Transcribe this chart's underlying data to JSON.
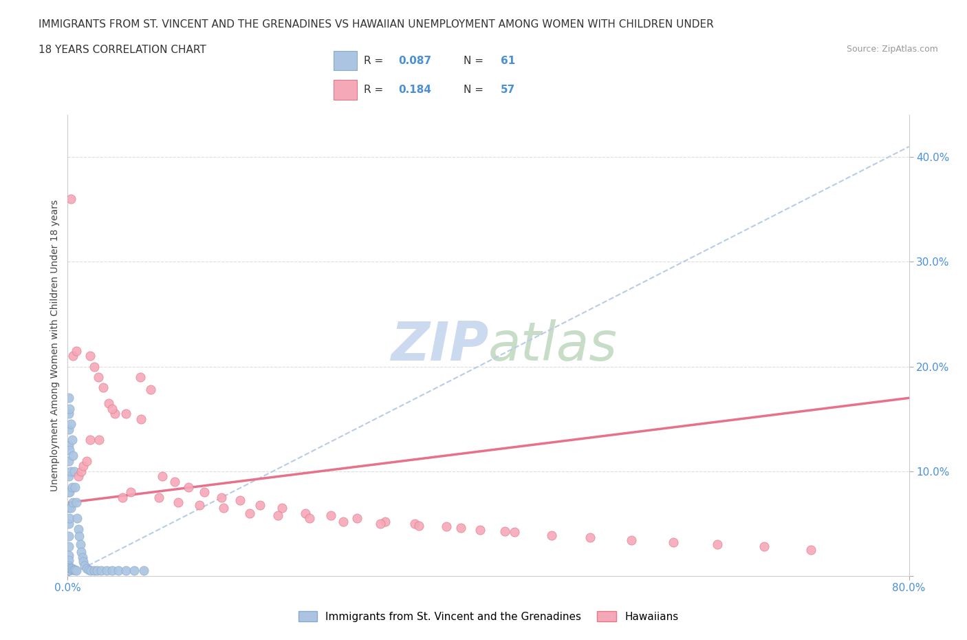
{
  "title_line1": "IMMIGRANTS FROM ST. VINCENT AND THE GRENADINES VS HAWAIIAN UNEMPLOYMENT AMONG WOMEN WITH CHILDREN UNDER",
  "title_line2": "18 YEARS CORRELATION CHART",
  "source": "Source: ZipAtlas.com",
  "ylabel": "Unemployment Among Women with Children Under 18 years",
  "xlim": [
    0.0,
    0.8
  ],
  "ylim": [
    0.0,
    0.44
  ],
  "ytick_values": [
    0.0,
    0.1,
    0.2,
    0.3,
    0.4
  ],
  "ytick_labels": [
    "",
    "10.0%",
    "20.0%",
    "30.0%",
    "40.0%"
  ],
  "xtick_values": [
    0.0,
    0.8
  ],
  "xtick_labels": [
    "0.0%",
    "80.0%"
  ],
  "legend_r1": "0.087",
  "legend_n1": "61",
  "legend_r2": "0.184",
  "legend_n2": "57",
  "legend_label1": "Immigrants from St. Vincent and the Grenadines",
  "legend_label2": "Hawaiians",
  "blue_color": "#aac4e2",
  "pink_color": "#f5a8b8",
  "blue_edge": "#88aacc",
  "pink_edge": "#e07888",
  "trend_blue_color": "#b8cce8",
  "trend_pink_color": "#e8708a",
  "watermark_zip_color": "#ccdaf0",
  "watermark_atlas_color": "#d8e8d8",
  "tick_color": "#4a90d9",
  "grid_color": "#dddddd",
  "blue_scatter_x": [
    0.001,
    0.001,
    0.001,
    0.001,
    0.001,
    0.001,
    0.001,
    0.001,
    0.001,
    0.001,
    0.001,
    0.001,
    0.001,
    0.001,
    0.001,
    0.001,
    0.001,
    0.001,
    0.001,
    0.001,
    0.002,
    0.002,
    0.002,
    0.002,
    0.002,
    0.003,
    0.003,
    0.003,
    0.003,
    0.004,
    0.004,
    0.004,
    0.005,
    0.005,
    0.005,
    0.006,
    0.006,
    0.007,
    0.007,
    0.008,
    0.008,
    0.009,
    0.01,
    0.011,
    0.012,
    0.013,
    0.014,
    0.015,
    0.016,
    0.018,
    0.02,
    0.022,
    0.025,
    0.028,
    0.032,
    0.037,
    0.042,
    0.048,
    0.055,
    0.063,
    0.072
  ],
  "blue_scatter_y": [
    0.17,
    0.155,
    0.14,
    0.125,
    0.11,
    0.095,
    0.08,
    0.065,
    0.05,
    0.038,
    0.028,
    0.02,
    0.015,
    0.01,
    0.008,
    0.007,
    0.006,
    0.005,
    0.005,
    0.005,
    0.16,
    0.12,
    0.08,
    0.055,
    0.008,
    0.145,
    0.1,
    0.065,
    0.007,
    0.13,
    0.085,
    0.007,
    0.115,
    0.07,
    0.006,
    0.1,
    0.006,
    0.085,
    0.006,
    0.07,
    0.005,
    0.055,
    0.045,
    0.038,
    0.03,
    0.023,
    0.018,
    0.014,
    0.01,
    0.007,
    0.006,
    0.005,
    0.005,
    0.005,
    0.005,
    0.005,
    0.005,
    0.005,
    0.005,
    0.005,
    0.005
  ],
  "pink_scatter_x": [
    0.003,
    0.005,
    0.008,
    0.01,
    0.013,
    0.015,
    0.018,
    0.021,
    0.025,
    0.029,
    0.034,
    0.039,
    0.045,
    0.052,
    0.06,
    0.069,
    0.079,
    0.09,
    0.102,
    0.115,
    0.13,
    0.146,
    0.164,
    0.183,
    0.204,
    0.226,
    0.25,
    0.275,
    0.302,
    0.33,
    0.36,
    0.392,
    0.425,
    0.46,
    0.497,
    0.536,
    0.576,
    0.618,
    0.662,
    0.707,
    0.021,
    0.03,
    0.042,
    0.055,
    0.07,
    0.087,
    0.105,
    0.125,
    0.148,
    0.173,
    0.2,
    0.23,
    0.262,
    0.297,
    0.334,
    0.374,
    0.416
  ],
  "pink_scatter_y": [
    0.36,
    0.21,
    0.215,
    0.095,
    0.1,
    0.105,
    0.11,
    0.21,
    0.2,
    0.19,
    0.18,
    0.165,
    0.155,
    0.075,
    0.08,
    0.19,
    0.178,
    0.095,
    0.09,
    0.085,
    0.08,
    0.075,
    0.072,
    0.068,
    0.065,
    0.06,
    0.058,
    0.055,
    0.052,
    0.05,
    0.047,
    0.044,
    0.042,
    0.039,
    0.037,
    0.034,
    0.032,
    0.03,
    0.028,
    0.025,
    0.13,
    0.13,
    0.16,
    0.155,
    0.15,
    0.075,
    0.07,
    0.068,
    0.065,
    0.06,
    0.058,
    0.055,
    0.052,
    0.05,
    0.048,
    0.046,
    0.043
  ],
  "blue_trend_x": [
    0.0,
    0.8
  ],
  "blue_trend_y": [
    0.0,
    0.41
  ],
  "pink_trend_x": [
    0.0,
    0.8
  ],
  "pink_trend_y": [
    0.07,
    0.17
  ]
}
